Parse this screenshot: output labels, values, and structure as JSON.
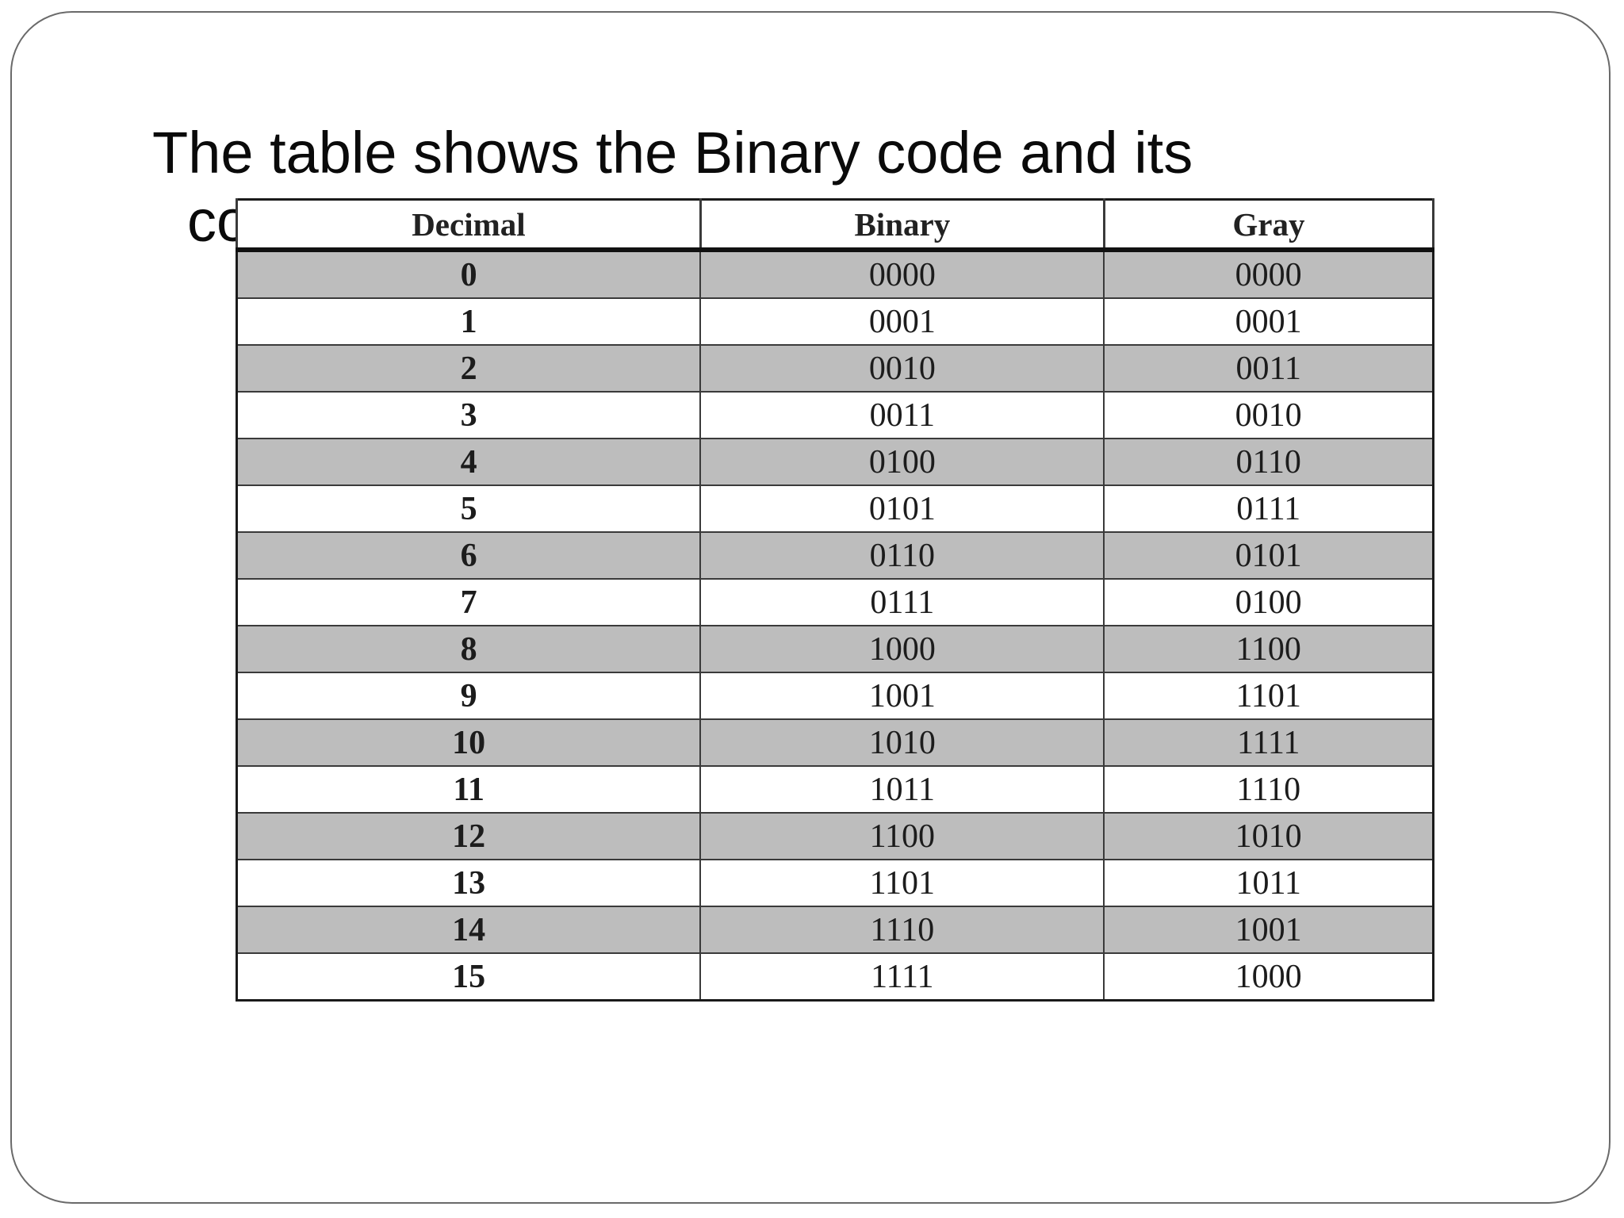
{
  "slide": {
    "text_line1": "The table shows the Binary code and its",
    "text_line2": "corresponding Gray code"
  },
  "table": {
    "headers": [
      "Decimal",
      "Binary",
      "Gray"
    ],
    "rows": [
      {
        "decimal": "0",
        "binary": "0000",
        "gray": "0000",
        "shaded": true
      },
      {
        "decimal": "1",
        "binary": "0001",
        "gray": "0001",
        "shaded": false
      },
      {
        "decimal": "2",
        "binary": "0010",
        "gray": "0011",
        "shaded": true
      },
      {
        "decimal": "3",
        "binary": "0011",
        "gray": "0010",
        "shaded": false
      },
      {
        "decimal": "4",
        "binary": "0100",
        "gray": "0110",
        "shaded": true
      },
      {
        "decimal": "5",
        "binary": "0101",
        "gray": "0111",
        "shaded": false
      },
      {
        "decimal": "6",
        "binary": "0110",
        "gray": "0101",
        "shaded": true
      },
      {
        "decimal": "7",
        "binary": "0111",
        "gray": "0100",
        "shaded": false
      },
      {
        "decimal": "8",
        "binary": "1000",
        "gray": "1100",
        "shaded": true
      },
      {
        "decimal": "9",
        "binary": "1001",
        "gray": "1101",
        "shaded": false
      },
      {
        "decimal": "10",
        "binary": "1010",
        "gray": "1111",
        "shaded": true
      },
      {
        "decimal": "11",
        "binary": "1011",
        "gray": "1110",
        "shaded": false
      },
      {
        "decimal": "12",
        "binary": "1100",
        "gray": "1010",
        "shaded": true
      },
      {
        "decimal": "13",
        "binary": "1101",
        "gray": "1011",
        "shaded": false
      },
      {
        "decimal": "14",
        "binary": "1110",
        "gray": "1001",
        "shaded": true
      },
      {
        "decimal": "15",
        "binary": "1111",
        "gray": "1000",
        "shaded": false
      }
    ]
  },
  "colors": {
    "shaded_row": "#bdbdbd",
    "plain_row": "#ffffff",
    "frame_border": "#6a6a6a"
  }
}
